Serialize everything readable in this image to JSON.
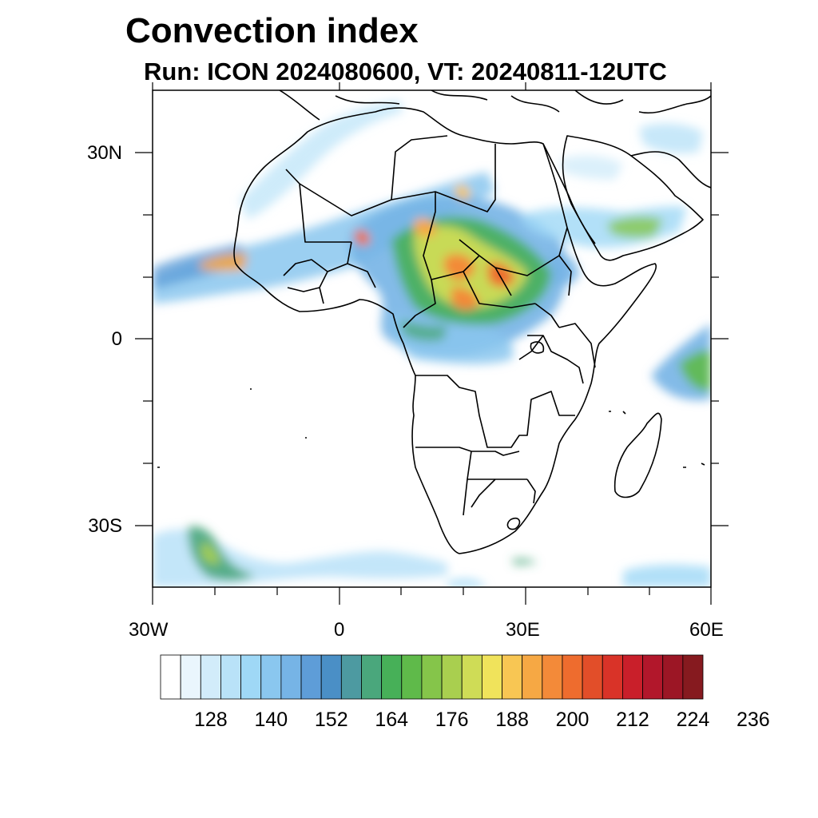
{
  "title": "Convection index",
  "subtitle": "Run: ICON 2024080600,  VT: 20240811-12UTC",
  "y_axis_labels": [
    "30N",
    "0",
    "30S"
  ],
  "x_axis_labels": [
    "30W",
    "0",
    "30E",
    "60E"
  ],
  "colorbar": {
    "labels": [
      "128",
      "140",
      "152",
      "164",
      "176",
      "188",
      "200",
      "212",
      "224",
      "236"
    ],
    "colors": [
      "#ffffff",
      "#eaf6fd",
      "#d2ecfa",
      "#b9e2f8",
      "#9fd8f6",
      "#8ac7ef",
      "#76b4e6",
      "#5e9dd8",
      "#4a8fc6",
      "#4d9aa1",
      "#4aa77c",
      "#47b058",
      "#5fba4a",
      "#85c54a",
      "#a9cf4f",
      "#cfdc56",
      "#f0e35b",
      "#f8c653",
      "#f6a844",
      "#f38a39",
      "#ee6c2e",
      "#e24e29",
      "#d93328",
      "#c91f2a",
      "#b2172b",
      "#9c1625",
      "#861a1f"
    ]
  },
  "map": {
    "lon_range": [
      -30,
      60
    ],
    "lat_range": [
      -40,
      40
    ],
    "field": "convection index"
  }
}
